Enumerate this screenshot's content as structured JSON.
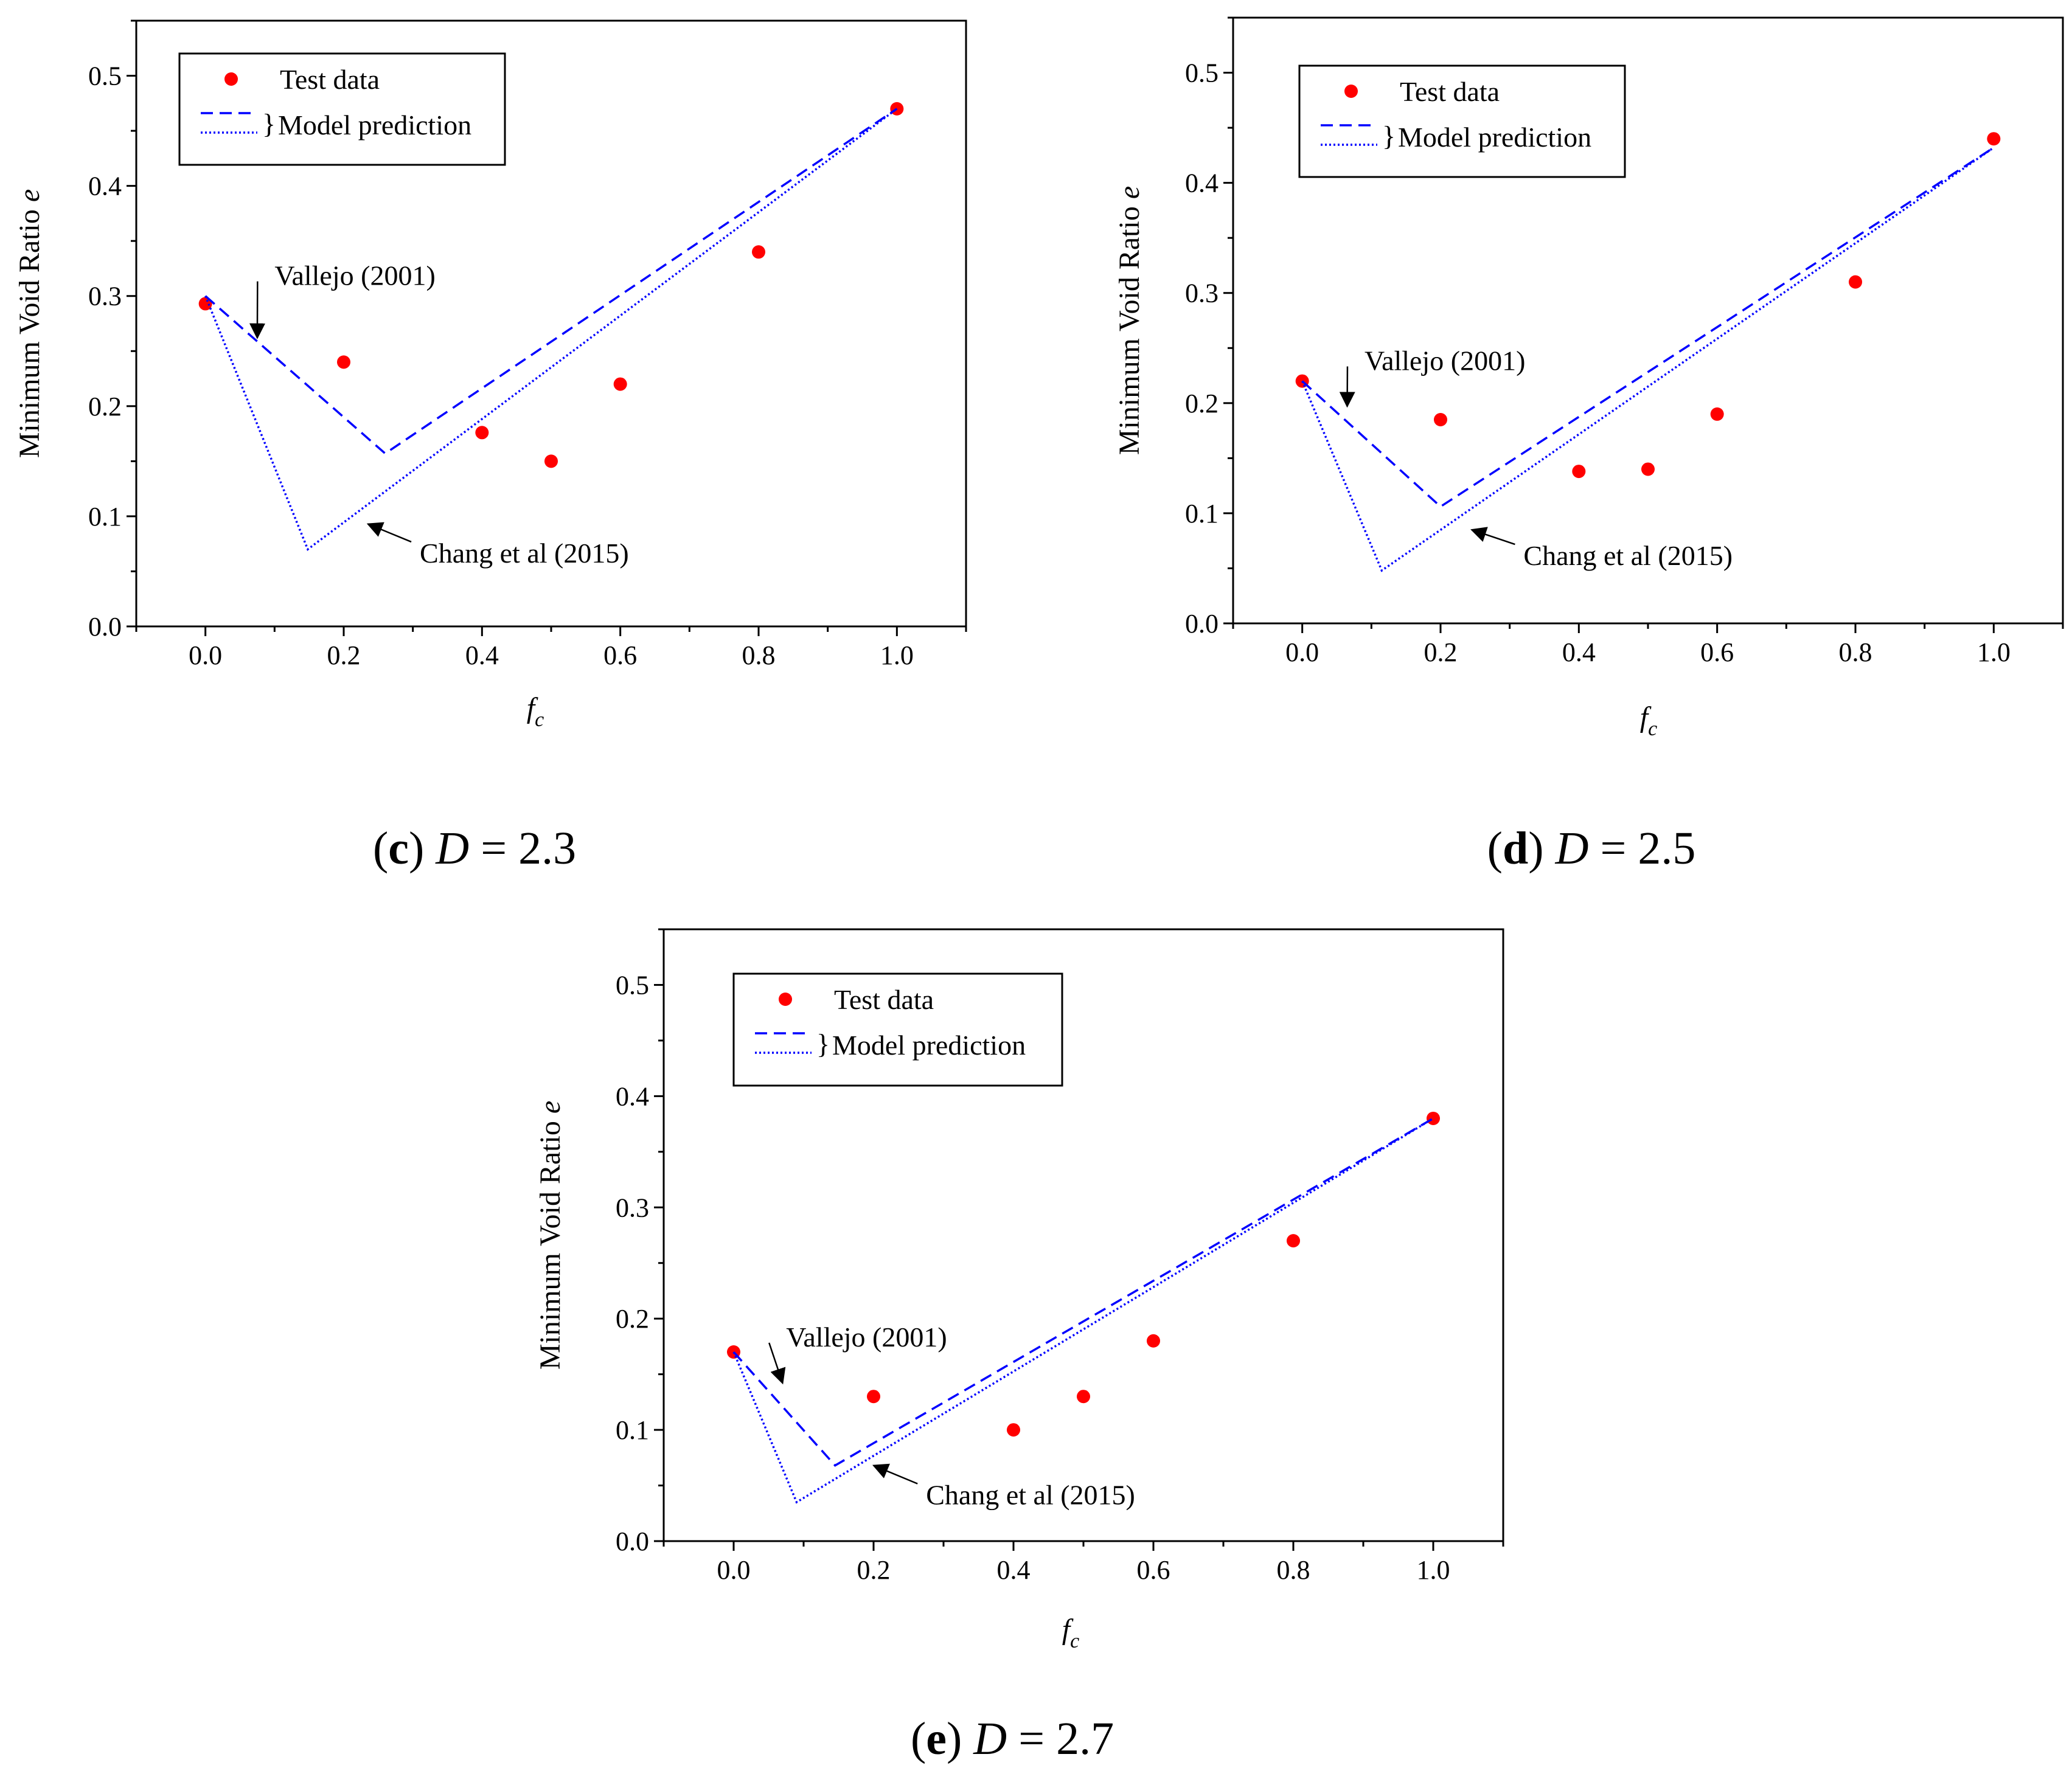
{
  "chart_data": [
    {
      "type": "line",
      "panel_label": "(c)",
      "caption_var": "D",
      "caption_value": "2.3",
      "xlabel_main": "f",
      "xlabel_sub": "c",
      "ylabel": "Minimum Void Ratio",
      "ylabel_var": "e",
      "xlim": [
        -0.1,
        1.1
      ],
      "ylim": [
        0.0,
        0.55
      ],
      "xticks": [
        0.0,
        0.2,
        0.4,
        0.6,
        0.8,
        1.0
      ],
      "xtick_labels": [
        "0.0",
        "0.2",
        "0.4",
        "0.6",
        "0.8",
        "1.0"
      ],
      "yticks": [
        0.0,
        0.1,
        0.2,
        0.3,
        0.4,
        0.5
      ],
      "ytick_labels": [
        "0.0",
        "0.1",
        "0.2",
        "0.3",
        "0.4",
        "0.5"
      ],
      "legend": {
        "test_label": "Test data",
        "model_label": "Model prediction",
        "brace": "}",
        "position": "top-left"
      },
      "series": [
        {
          "name": "Test data",
          "style": "marker",
          "color": "#ff0000",
          "x": [
            0.0,
            0.2,
            0.4,
            0.5,
            0.6,
            0.8,
            1.0
          ],
          "y": [
            0.293,
            0.24,
            0.176,
            0.15,
            0.22,
            0.34,
            0.47
          ]
        },
        {
          "name": "Vallejo (2001)",
          "style": "dashed",
          "color": "#0000ff",
          "x": [
            0.0,
            0.26,
            1.0
          ],
          "y": [
            0.3,
            0.157,
            0.47
          ]
        },
        {
          "name": "Chang et al (2015)",
          "style": "dotted",
          "color": "#0000ff",
          "x": [
            0.0,
            0.148,
            1.0
          ],
          "y": [
            0.3,
            0.07,
            0.47
          ]
        }
      ],
      "annotations": [
        {
          "text": "Vallejo (2001)",
          "x": 0.1,
          "y": 0.31,
          "anchor": "start",
          "arrow_to": [
            0.075,
            0.262
          ]
        },
        {
          "text": "Chang et al (2015)",
          "x": 0.31,
          "y": 0.058,
          "anchor": "start",
          "arrow_to": [
            0.235,
            0.093
          ]
        }
      ]
    },
    {
      "type": "line",
      "panel_label": "(d)",
      "caption_var": "D",
      "caption_value": "2.5",
      "xlabel_main": "f",
      "xlabel_sub": "c",
      "ylabel": "Minimum Void Ratio",
      "ylabel_var": "e",
      "xlim": [
        -0.1,
        1.1
      ],
      "ylim": [
        0.0,
        0.55
      ],
      "xticks": [
        0.0,
        0.2,
        0.4,
        0.6,
        0.8,
        1.0
      ],
      "xtick_labels": [
        "0.0",
        "0.2",
        "0.4",
        "0.6",
        "0.8",
        "1.0"
      ],
      "yticks": [
        0.0,
        0.1,
        0.2,
        0.3,
        0.4,
        0.5
      ],
      "ytick_labels": [
        "0.0",
        "0.1",
        "0.2",
        "0.3",
        "0.4",
        "0.5"
      ],
      "legend": {
        "test_label": "Test data",
        "model_label": "Model prediction",
        "brace": "}",
        "position": "top-left"
      },
      "series": [
        {
          "name": "Test data",
          "style": "marker",
          "color": "#ff0000",
          "x": [
            0.0,
            0.2,
            0.4,
            0.5,
            0.6,
            0.8,
            1.0
          ],
          "y": [
            0.22,
            0.185,
            0.138,
            0.14,
            0.19,
            0.31,
            0.44
          ]
        },
        {
          "name": "Vallejo (2001)",
          "style": "dashed",
          "color": "#0000ff",
          "x": [
            0.0,
            0.2,
            1.0
          ],
          "y": [
            0.22,
            0.106,
            0.432
          ]
        },
        {
          "name": "Chang et al (2015)",
          "style": "dotted",
          "color": "#0000ff",
          "x": [
            0.0,
            0.115,
            1.0
          ],
          "y": [
            0.22,
            0.048,
            0.432
          ]
        }
      ],
      "annotations": [
        {
          "text": "Vallejo (2001)",
          "x": 0.09,
          "y": 0.23,
          "anchor": "start",
          "arrow_to": [
            0.065,
            0.197
          ]
        },
        {
          "text": "Chang et al (2015)",
          "x": 0.32,
          "y": 0.053,
          "anchor": "start",
          "arrow_to": [
            0.245,
            0.085
          ]
        }
      ]
    },
    {
      "type": "line",
      "panel_label": "(e)",
      "caption_var": "D",
      "caption_value": "2.7",
      "xlabel_main": "f",
      "xlabel_sub": "c",
      "ylabel": "Minimum Void Ratio",
      "ylabel_var": "e",
      "xlim": [
        -0.1,
        1.1
      ],
      "ylim": [
        0.0,
        0.55
      ],
      "xticks": [
        0.0,
        0.2,
        0.4,
        0.6,
        0.8,
        1.0
      ],
      "xtick_labels": [
        "0.0",
        "0.2",
        "0.4",
        "0.6",
        "0.8",
        "1.0"
      ],
      "yticks": [
        0.0,
        0.1,
        0.2,
        0.3,
        0.4,
        0.5
      ],
      "ytick_labels": [
        "0.0",
        "0.1",
        "0.2",
        "0.3",
        "0.4",
        "0.5"
      ],
      "legend": {
        "test_label": "Test data",
        "model_label": "Model prediction",
        "brace": "}",
        "position": "top-left"
      },
      "series": [
        {
          "name": "Test data",
          "style": "marker",
          "color": "#ff0000",
          "x": [
            0.0,
            0.2,
            0.4,
            0.5,
            0.6,
            0.8,
            1.0
          ],
          "y": [
            0.17,
            0.13,
            0.1,
            0.13,
            0.18,
            0.27,
            0.38
          ]
        },
        {
          "name": "Vallejo (2001)",
          "style": "dashed",
          "color": "#0000ff",
          "x": [
            0.0,
            0.145,
            1.0
          ],
          "y": [
            0.17,
            0.068,
            0.38
          ]
        },
        {
          "name": "Chang et al (2015)",
          "style": "dotted",
          "color": "#0000ff",
          "x": [
            0.0,
            0.09,
            1.0
          ],
          "y": [
            0.17,
            0.035,
            0.38
          ]
        }
      ],
      "annotations": [
        {
          "text": "Vallejo (2001)",
          "x": 0.075,
          "y": 0.175,
          "anchor": "start",
          "arrow_to": [
            0.07,
            0.142
          ]
        },
        {
          "text": "Chang et al (2015)",
          "x": 0.275,
          "y": 0.033,
          "anchor": "start",
          "arrow_to": [
            0.2,
            0.068
          ]
        }
      ]
    }
  ]
}
